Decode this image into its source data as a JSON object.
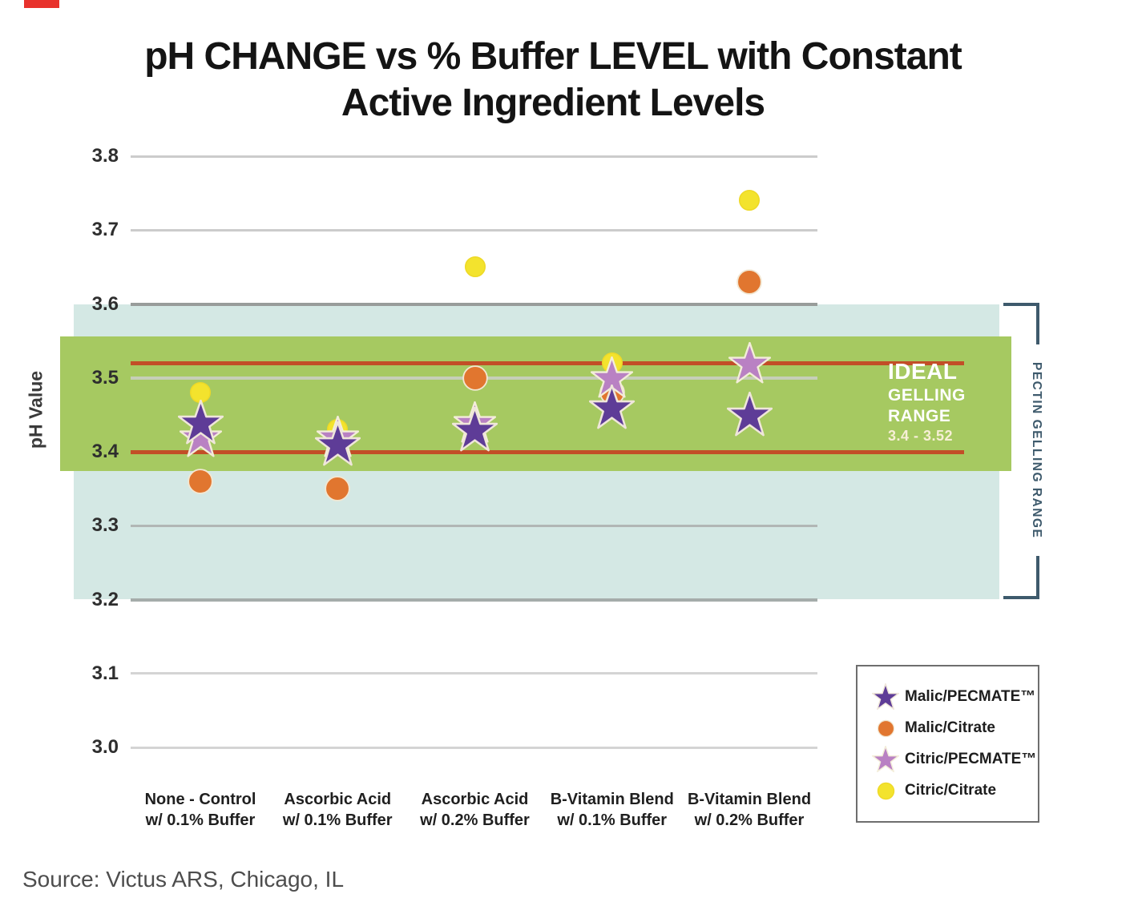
{
  "title": {
    "line1": "pH CHANGE vs % Buffer LEVEL with Constant",
    "line2": "Active Ingredient Levels"
  },
  "y_axis": {
    "label": "pH Value",
    "ticks": [
      "3.8",
      "3.7",
      "3.6",
      "3.5",
      "3.4",
      "3.3",
      "3.2",
      "3.1",
      "3.0"
    ]
  },
  "x_axis": {
    "categories": [
      {
        "line1": "None - Control",
        "line2": "w/ 0.1% Buffer"
      },
      {
        "line1": "Ascorbic Acid",
        "line2": "w/ 0.1% Buffer"
      },
      {
        "line1": "Ascorbic Acid",
        "line2": "w/ 0.2% Buffer"
      },
      {
        "line1": "B-Vitamin Blend",
        "line2": "w/ 0.1% Buffer"
      },
      {
        "line1": "B-Vitamin Blend",
        "line2": "w/ 0.2% Buffer"
      }
    ]
  },
  "bands": {
    "ideal": {
      "lines": [
        "IDEAL",
        "GELLING",
        "RANGE",
        "3.4 - 3.52"
      ],
      "range": [
        3.52,
        3.4
      ],
      "fill_color": "#a6c961",
      "line_color": "#c24e27"
    },
    "pectin": {
      "label": "PECTIN GELLING RANGE",
      "range": [
        3.6,
        3.2
      ],
      "fill_color": "#d4e8e4",
      "bracket_color": "#3e5a6c"
    }
  },
  "source": "Source: Victus ARS, Chicago, IL",
  "corner_mark_color": "#e8322c",
  "chart_data": {
    "type": "scatter",
    "title": "pH CHANGE vs % Buffer LEVEL with Constant Active Ingredient Levels",
    "xlabel": "",
    "ylabel": "pH Value",
    "ylim": [
      3.0,
      3.8
    ],
    "yticks": [
      3.8,
      3.7,
      3.6,
      3.5,
      3.4,
      3.3,
      3.2,
      3.1,
      3.0
    ],
    "grid": true,
    "legend_position": "lower right",
    "categories": [
      "None - Control w/ 0.1% Buffer",
      "Ascorbic Acid w/ 0.1% Buffer",
      "Ascorbic Acid w/ 0.2% Buffer",
      "B-Vitamin Blend w/ 0.1% Buffer",
      "B-Vitamin Blend w/ 0.2% Buffer"
    ],
    "series": [
      {
        "name": "Malic/PECMATE™",
        "marker": "star",
        "color": "#5e3c97",
        "outline": "#efe6da",
        "values": [
          3.44,
          3.41,
          3.43,
          3.46,
          3.45
        ]
      },
      {
        "name": "Malic/Citrate",
        "marker": "circle",
        "color": "#e1762f",
        "outline": "#f2e7d2",
        "values": [
          3.36,
          3.35,
          3.5,
          3.48,
          3.63
        ]
      },
      {
        "name": "Citric/PECMATE™",
        "marker": "star",
        "color": "#b981c3",
        "outline": "#f3edd9",
        "values": [
          3.42,
          3.42,
          3.44,
          3.5,
          3.52
        ]
      },
      {
        "name": "Citric/Citrate",
        "marker": "circle",
        "color": "#f3e32d",
        "outline": "#eed926",
        "values": [
          3.48,
          3.43,
          3.65,
          3.52,
          3.74
        ]
      }
    ],
    "annotations": [
      {
        "text": "IDEAL GELLING RANGE 3.4 - 3.52",
        "band": [
          3.4,
          3.52
        ],
        "color": "#a6c961"
      },
      {
        "text": "PECTIN GELLING RANGE",
        "band": [
          3.2,
          3.6
        ],
        "color": "#d4e8e4"
      }
    ]
  }
}
